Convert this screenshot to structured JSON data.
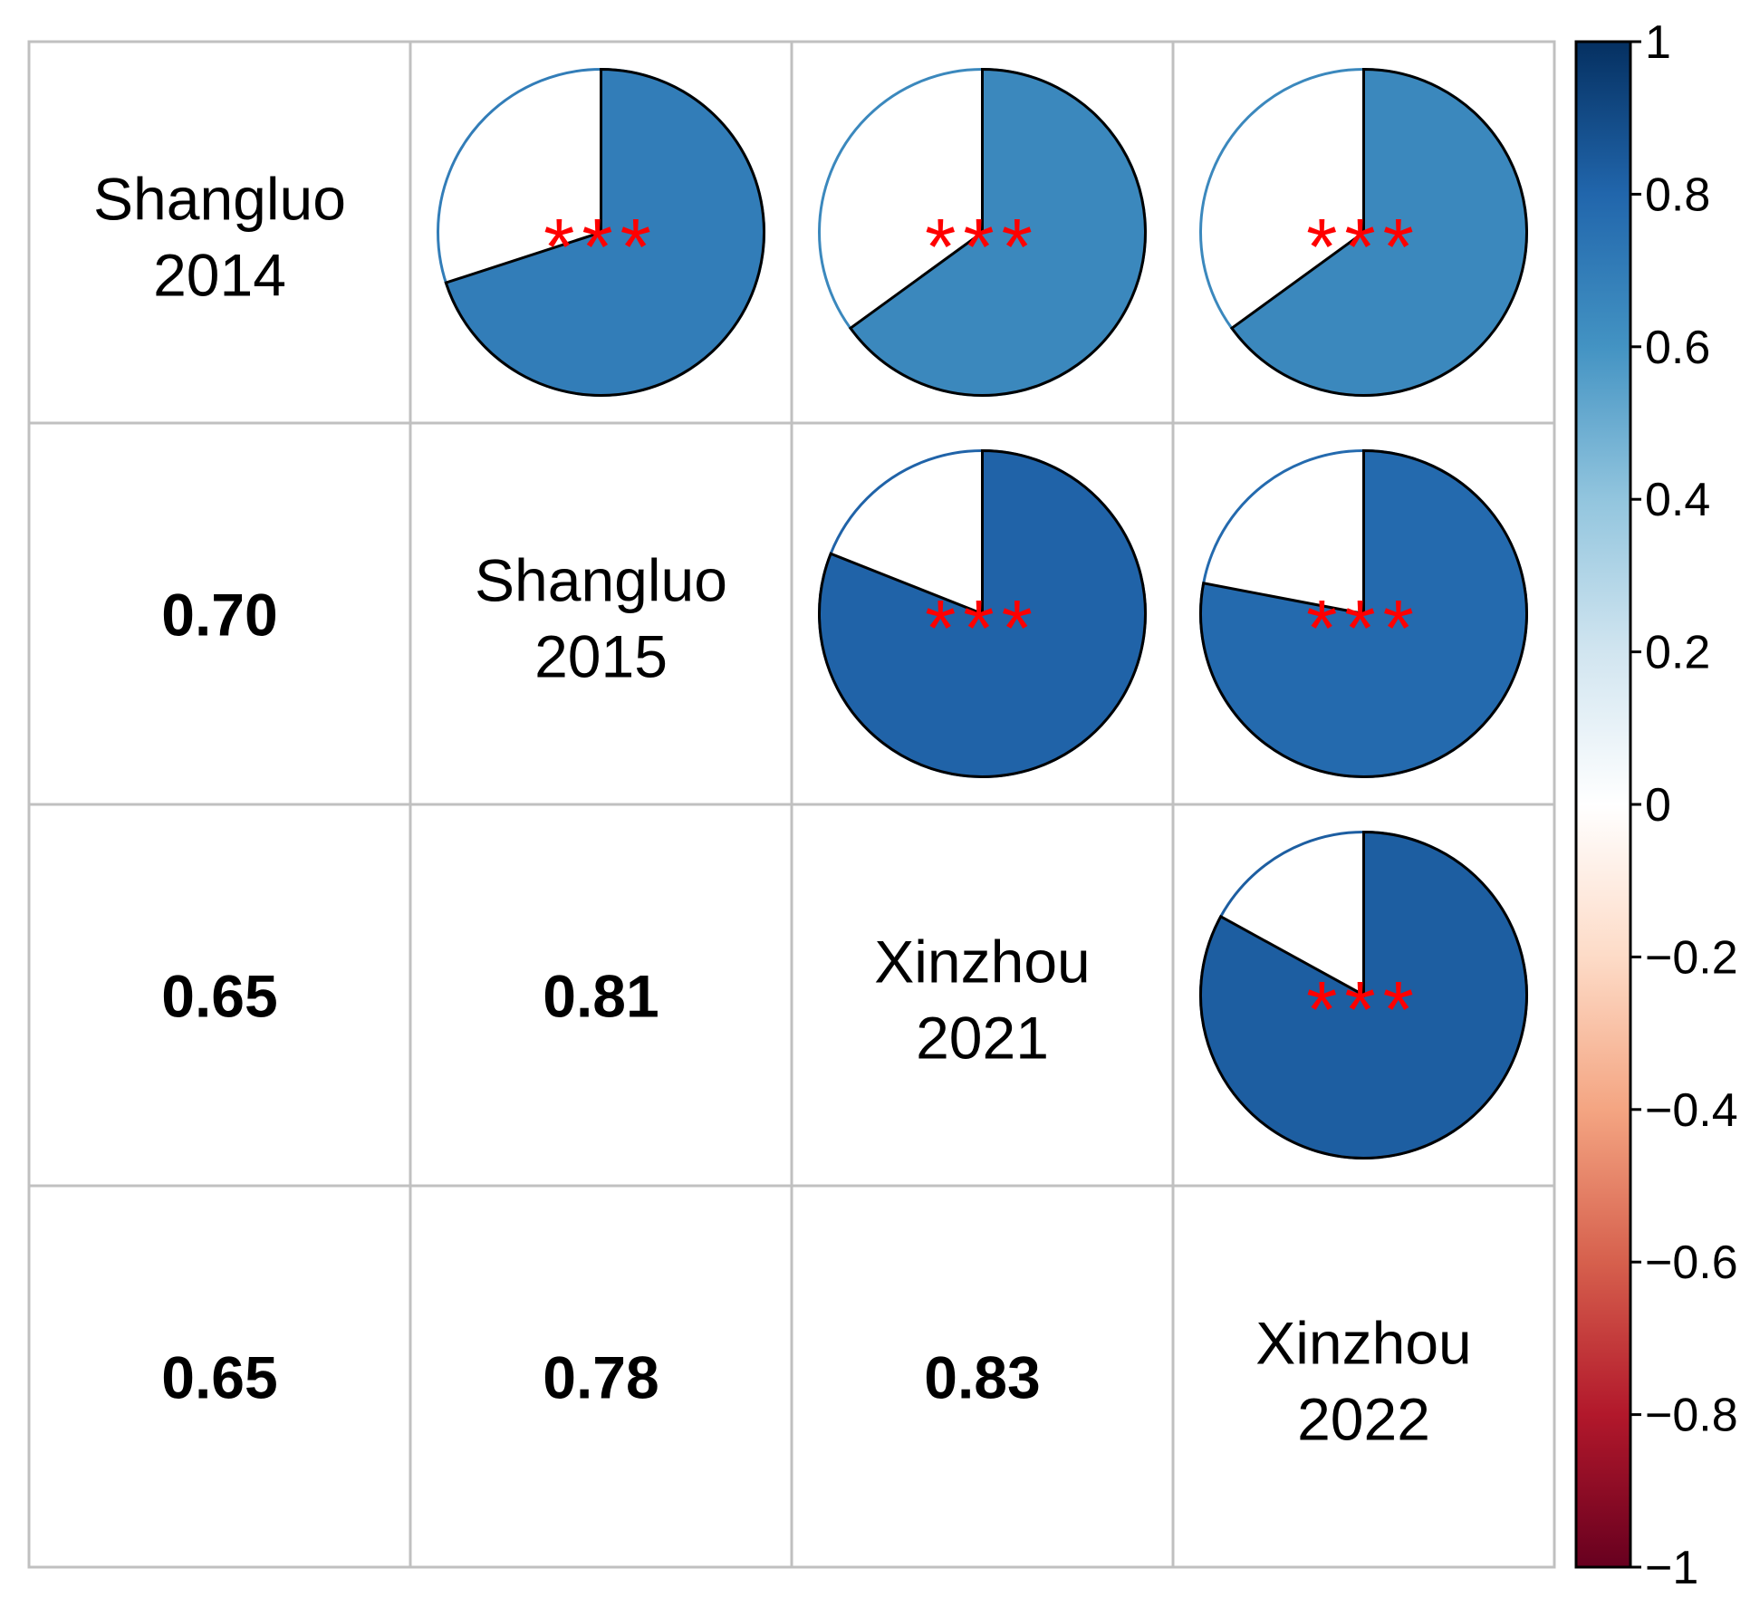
{
  "chart_data": {
    "type": "heatmap",
    "subtype": "correlation-matrix",
    "upper_glyph": "pie",
    "lower_glyph": "number",
    "variables": [
      [
        "Shangluo",
        "2014"
      ],
      [
        "Shangluo",
        "2015"
      ],
      [
        "Xinzhou",
        "2021"
      ],
      [
        "Xinzhou",
        "2022"
      ]
    ],
    "matrix": [
      [
        1,
        0.7,
        0.65,
        0.65
      ],
      [
        0.7,
        1,
        0.81,
        0.78
      ],
      [
        0.65,
        0.81,
        1,
        0.83
      ],
      [
        0.65,
        0.78,
        0.83,
        1
      ]
    ],
    "lower_labels": [
      {
        "row": 1,
        "col": 0,
        "text": "0.70"
      },
      {
        "row": 2,
        "col": 0,
        "text": "0.65"
      },
      {
        "row": 2,
        "col": 1,
        "text": "0.81"
      },
      {
        "row": 3,
        "col": 0,
        "text": "0.65"
      },
      {
        "row": 3,
        "col": 1,
        "text": "0.78"
      },
      {
        "row": 3,
        "col": 2,
        "text": "0.83"
      }
    ],
    "significance": [
      {
        "row": 0,
        "col": 1,
        "stars": "***"
      },
      {
        "row": 0,
        "col": 2,
        "stars": "***"
      },
      {
        "row": 0,
        "col": 3,
        "stars": "***"
      },
      {
        "row": 1,
        "col": 2,
        "stars": "***"
      },
      {
        "row": 1,
        "col": 3,
        "stars": "***"
      },
      {
        "row": 2,
        "col": 3,
        "stars": "***"
      }
    ],
    "colorbar": {
      "range": [
        -1,
        1
      ],
      "ticks": [
        "1",
        "0.8",
        "0.6",
        "0.4",
        "0.2",
        "0",
        "−0.2",
        "−0.4",
        "−0.6",
        "−0.8",
        "−1"
      ],
      "tick_values": [
        1,
        0.8,
        0.6,
        0.4,
        0.2,
        0,
        -0.2,
        -0.4,
        -0.6,
        -0.8,
        -1
      ],
      "palette": [
        "#67001f",
        "#b2182b",
        "#d6604d",
        "#f4a582",
        "#fddbc7",
        "#ffffff",
        "#d1e5f0",
        "#92c5de",
        "#4393c3",
        "#2166ac",
        "#053061"
      ]
    },
    "colors": {
      "grid": "#c0c0c0",
      "pie_outline": "#000000",
      "sig_text": "#ff0000"
    }
  }
}
